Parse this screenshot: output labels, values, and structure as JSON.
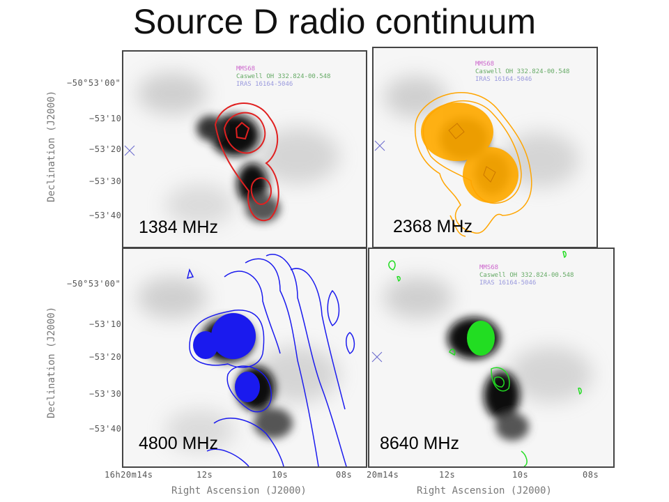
{
  "title": "Source D radio continuum",
  "panels": [
    {
      "label": "1384 MHz",
      "color": "#e02020"
    },
    {
      "label": "2368 MHz",
      "color": "#ffa500"
    },
    {
      "label": "4800 MHz",
      "color": "#1a1aee"
    },
    {
      "label": "8640 MHz",
      "color": "#22dd22"
    }
  ],
  "legend": {
    "line1": "MMS68",
    "line2": "Caswell OH 332.824-00.548",
    "line3": "IRAS 16164-5046"
  },
  "axes": {
    "y_ticks": [
      "−50°53'00\"",
      "−53'10\"",
      "−53'20\"",
      "−53'30\"",
      "−53'40\""
    ],
    "x_ticks": [
      "16h20m14s",
      "12s",
      "10s",
      "08s"
    ],
    "x_ticks_right": [
      "20m14s",
      "12s",
      "10s",
      "08s"
    ],
    "ylabel": "Declination (J2000)",
    "xlabel": "Right Ascension (J2000)"
  }
}
